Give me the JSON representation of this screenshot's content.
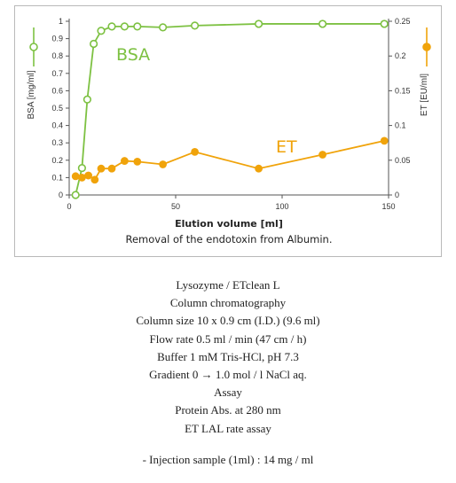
{
  "chart_data": {
    "type": "line",
    "xlabel": "Elution volume [ml]",
    "caption": "Removal of the endotoxin from Albumin.",
    "xlim": [
      0,
      150
    ],
    "x_ticks": [
      "0",
      "50",
      "100",
      "150"
    ],
    "y_left": {
      "label": "BSA [mg/ml]",
      "lim": [
        0,
        1
      ],
      "ticks": [
        "0",
        "0.1",
        "0.2",
        "0.3",
        "0.4",
        "0.5",
        "0.6",
        "0.7",
        "0.8",
        "0.9",
        "1"
      ]
    },
    "y_right": {
      "label": "ET [EU/ml]",
      "lim": [
        0,
        0.25
      ],
      "ticks": [
        "0",
        "0.05",
        "0.1",
        "0.15",
        "0.2",
        "0.25"
      ]
    },
    "series": [
      {
        "name": "BSA",
        "axis": "left",
        "color": "#7dc142",
        "marker": "open-circle",
        "x": [
          3,
          6,
          8.5,
          11.5,
          15,
          20,
          26,
          32,
          44,
          59,
          89,
          119,
          148
        ],
        "y": [
          0.0,
          0.155,
          0.55,
          0.87,
          0.945,
          0.97,
          0.97,
          0.97,
          0.965,
          0.975,
          0.985,
          0.985,
          0.985
        ]
      },
      {
        "name": "ET",
        "axis": "right",
        "color": "#f0a30a",
        "marker": "filled-circle",
        "x": [
          3,
          6,
          9,
          12,
          15,
          20,
          26,
          32,
          44,
          59,
          89,
          119,
          148
        ],
        "y": [
          0.027,
          0.025,
          0.028,
          0.022,
          0.038,
          0.038,
          0.049,
          0.048,
          0.044,
          0.062,
          0.038,
          0.058,
          0.078
        ]
      }
    ]
  },
  "description": {
    "lines": [
      "Lysozyme / ETclean L",
      "Column chromatography",
      "Column size 10 x 0.9 cm (I.D.) (9.6 ml)",
      "Flow rate 0.5 ml / min (47 cm / h)",
      "Buffer 1 mM Tris-HCl, pH 7.3",
      "Gradient 0 → 1.0 mol / l NaCl aq.",
      "Assay",
      "Protein Abs. at 280 nm",
      "ET LAL rate assay"
    ],
    "note": "- Injection sample (1ml) : 14 mg / ml"
  }
}
